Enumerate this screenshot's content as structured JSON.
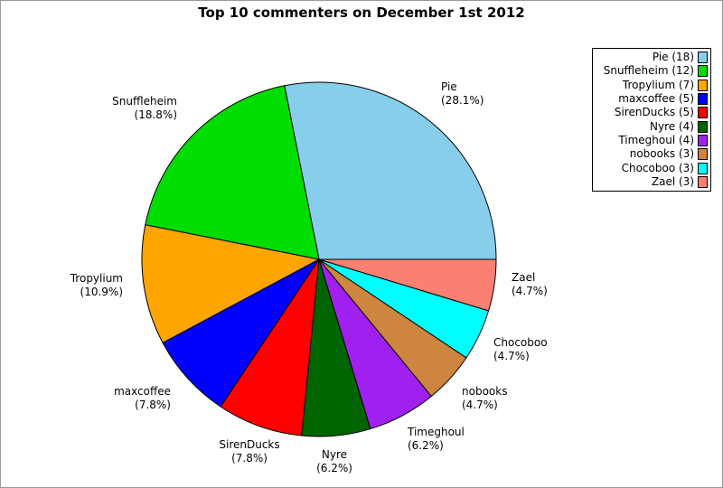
{
  "title": {
    "line1": "Top 10 commenters",
    "line2": "on December 1st 2012"
  },
  "chart_data": {
    "type": "pie",
    "title": "Top 10 commenters on December 1st 2012",
    "start_angle_deg": 0,
    "direction": "counterclockwise",
    "legend_position": "upper right",
    "slices": [
      {
        "label": "Pie",
        "count": 18,
        "percent": 28.1,
        "percent_label": "(28.1%)",
        "legend_label": "Pie (18)",
        "color": "#87CEEB"
      },
      {
        "label": "Snuffleheim",
        "count": 12,
        "percent": 18.8,
        "percent_label": "(18.8%)",
        "legend_label": "Snuffleheim (12)",
        "color": "#00DD00"
      },
      {
        "label": "Tropylium",
        "count": 7,
        "percent": 10.9,
        "percent_label": "(10.9%)",
        "legend_label": "Tropylium (7)",
        "color": "#FFA500"
      },
      {
        "label": "maxcoffee",
        "count": 5,
        "percent": 7.8,
        "percent_label": "(7.8%)",
        "legend_label": "maxcoffee (5)",
        "color": "#0000FF"
      },
      {
        "label": "SirenDucks",
        "count": 5,
        "percent": 7.8,
        "percent_label": "(7.8%)",
        "legend_label": "SirenDucks (5)",
        "color": "#FF0000"
      },
      {
        "label": "Nyre",
        "count": 4,
        "percent": 6.2,
        "percent_label": "(6.2%)",
        "legend_label": "Nyre (4)",
        "color": "#006400"
      },
      {
        "label": "Timeghoul",
        "count": 4,
        "percent": 6.2,
        "percent_label": "(6.2%)",
        "legend_label": "Timeghoul (4)",
        "color": "#A020F0"
      },
      {
        "label": "nobooks",
        "count": 3,
        "percent": 4.7,
        "percent_label": "(4.7%)",
        "legend_label": "nobooks (3)",
        "color": "#CD853F"
      },
      {
        "label": "Chocoboo",
        "count": 3,
        "percent": 4.7,
        "percent_label": "(4.7%)",
        "legend_label": "Chocoboo (3)",
        "color": "#00FFFF"
      },
      {
        "label": "Zael",
        "count": 3,
        "percent": 4.7,
        "percent_label": "(4.7%)",
        "legend_label": "Zael (3)",
        "color": "#FA8072"
      }
    ]
  },
  "colors": {
    "outline": "#000000",
    "frame_border": "#999999",
    "background": "#ffffff"
  }
}
